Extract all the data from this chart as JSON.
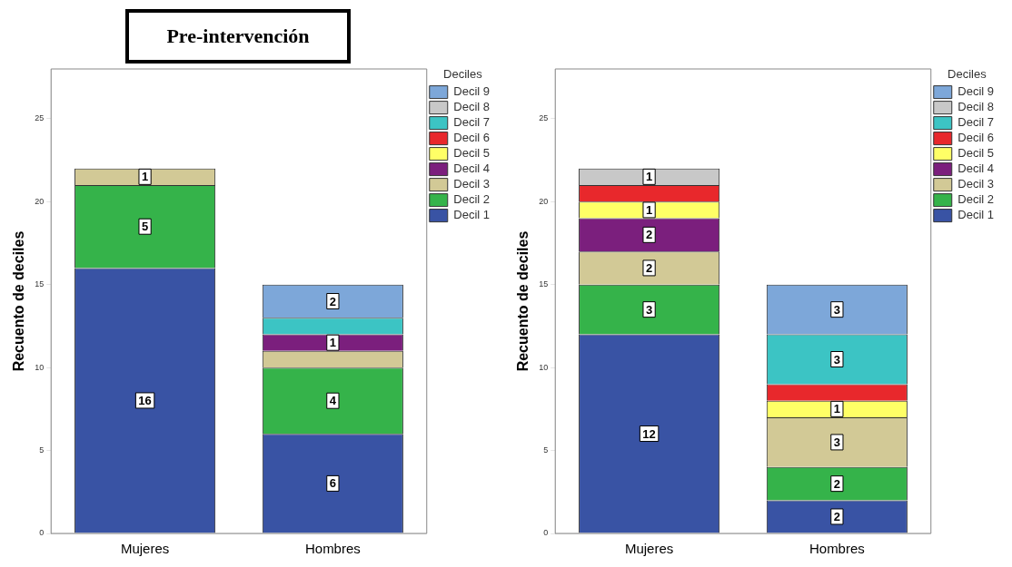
{
  "chart_data": [
    {
      "type": "bar",
      "title": "Pre-intervención",
      "ylabel": "Recuento de deciles",
      "categories": [
        "Mujeres",
        "Hombres"
      ],
      "stacked": true,
      "ylim": [
        0,
        28
      ],
      "yticks": [
        0,
        5,
        10,
        15,
        20,
        25
      ],
      "grid": false,
      "legend": "right",
      "legend_title": "Deciles",
      "series": [
        {
          "name": "Decil 1",
          "color": "#3953a4",
          "values": [
            16,
            6
          ],
          "value_labels": [
            "16",
            "6"
          ]
        },
        {
          "name": "Decil 2",
          "color": "#35b34a",
          "values": [
            5,
            4
          ],
          "value_labels": [
            "5",
            "4"
          ]
        },
        {
          "name": "Decil 3",
          "color": "#d2c996",
          "values": [
            1,
            1
          ],
          "value_labels": [
            "1",
            null
          ]
        },
        {
          "name": "Decil 4",
          "color": "#7b1f7d",
          "values": [
            0,
            1
          ],
          "value_labels": [
            null,
            "1"
          ]
        },
        {
          "name": "Decil 5",
          "color": "#ffff66",
          "values": [
            0,
            0
          ],
          "value_labels": [
            null,
            null
          ]
        },
        {
          "name": "Decil 6",
          "color": "#e8282c",
          "values": [
            0,
            0
          ],
          "value_labels": [
            null,
            null
          ]
        },
        {
          "name": "Decil 7",
          "color": "#3cc4c4",
          "values": [
            0,
            1
          ],
          "value_labels": [
            null,
            null
          ]
        },
        {
          "name": "Decil 8",
          "color": "#c8c8c8",
          "values": [
            0,
            0
          ],
          "value_labels": [
            null,
            null
          ]
        },
        {
          "name": "Decil 9",
          "color": "#7da7d9",
          "values": [
            0,
            2
          ],
          "value_labels": [
            null,
            "2"
          ]
        }
      ]
    },
    {
      "type": "bar",
      "ylabel": "Recuento de deciles",
      "categories": [
        "Mujeres",
        "Hombres"
      ],
      "stacked": true,
      "ylim": [
        0,
        28
      ],
      "yticks": [
        0,
        5,
        10,
        15,
        20,
        25
      ],
      "grid": false,
      "legend": "right",
      "legend_title": "Deciles",
      "series": [
        {
          "name": "Decil 1",
          "color": "#3953a4",
          "values": [
            12,
            2
          ],
          "value_labels": [
            "12",
            "2"
          ]
        },
        {
          "name": "Decil 2",
          "color": "#35b34a",
          "values": [
            3,
            2
          ],
          "value_labels": [
            "3",
            "2"
          ]
        },
        {
          "name": "Decil 3",
          "color": "#d2c996",
          "values": [
            2,
            3
          ],
          "value_labels": [
            "2",
            "3"
          ]
        },
        {
          "name": "Decil 4",
          "color": "#7b1f7d",
          "values": [
            2,
            0
          ],
          "value_labels": [
            "2",
            null
          ]
        },
        {
          "name": "Decil 5",
          "color": "#ffff66",
          "values": [
            1,
            1
          ],
          "value_labels": [
            "1",
            "1"
          ]
        },
        {
          "name": "Decil 6",
          "color": "#e8282c",
          "values": [
            1,
            1
          ],
          "value_labels": [
            null,
            null
          ]
        },
        {
          "name": "Decil 7",
          "color": "#3cc4c4",
          "values": [
            0,
            3
          ],
          "value_labels": [
            null,
            "3"
          ]
        },
        {
          "name": "Decil 8",
          "color": "#c8c8c8",
          "values": [
            1,
            0
          ],
          "value_labels": [
            "1",
            null
          ]
        },
        {
          "name": "Decil 9",
          "color": "#7da7d9",
          "values": [
            0,
            3
          ],
          "value_labels": [
            null,
            "3"
          ]
        }
      ]
    }
  ]
}
